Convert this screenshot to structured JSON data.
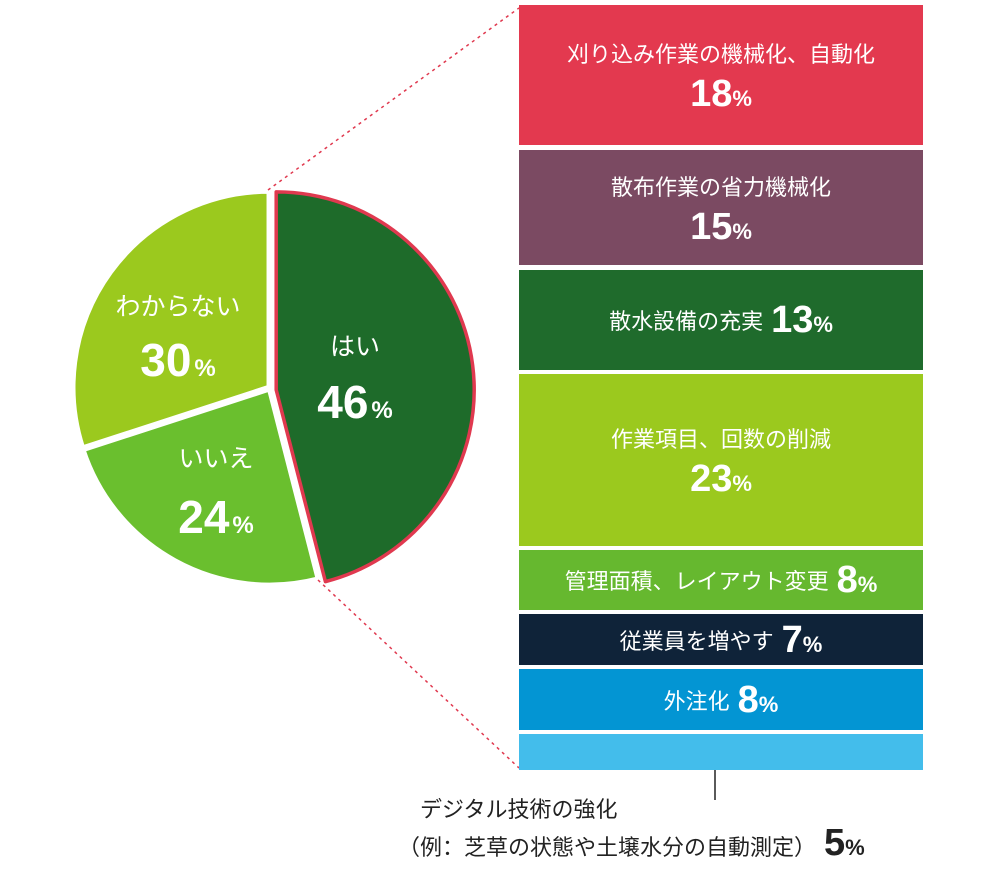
{
  "colors": {
    "yes": "#1e6b2a",
    "no": "#6abf2e",
    "unknown": "#9bc91e",
    "highlight": "#e0394f",
    "connector": "#e0394f",
    "bars": [
      "#e3394f",
      "#7b4a62",
      "#1f6b2c",
      "#9bc91e",
      "#66b82f",
      "#0f2339",
      "#0395d3",
      "#43bdeb"
    ]
  },
  "chart_data": [
    {
      "type": "pie",
      "categories": [
        "はい",
        "いいえ",
        "わからない"
      ],
      "values": [
        46,
        24,
        30
      ],
      "unit": "%"
    },
    {
      "type": "bar",
      "orientation": "stacked-vertical",
      "categories": [
        "刈り込み作業の機械化、自動化",
        "散布作業の省力機械化",
        "散水設備の充実",
        "作業項目、回数の削減",
        "管理面積、レイアウト変更",
        "従業員を増やす",
        "外注化",
        "デジタル技術の強化（例：芝草の状態や土壌水分の自動測定）"
      ],
      "values": [
        18,
        15,
        13,
        23,
        8,
        7,
        8,
        5
      ],
      "unit": "%"
    }
  ],
  "pie_labels": {
    "yes": {
      "label": "はい",
      "value": "46",
      "pct": "%"
    },
    "no": {
      "label": "いいえ",
      "value": "24",
      "pct": "%"
    },
    "unknown": {
      "label": "わからない",
      "value": "30",
      "pct": "%"
    }
  },
  "bars": [
    {
      "label": "刈り込み作業の機械化、自動化",
      "value": "18",
      "pct": "%"
    },
    {
      "label": "散布作業の省力機械化",
      "value": "15",
      "pct": "%"
    },
    {
      "label": "散水設備の充実",
      "value": "13",
      "pct": "%"
    },
    {
      "label": "作業項目、回数の削減",
      "value": "23",
      "pct": "%"
    },
    {
      "label": "管理面積、レイアウト変更",
      "value": "8",
      "pct": "%"
    },
    {
      "label": "従業員を増やす",
      "value": "7",
      "pct": "%"
    },
    {
      "label": "外注化",
      "value": "8",
      "pct": "%"
    }
  ],
  "note": {
    "line1": "デジタル技術の強化",
    "line2": "（例：芝草の状態や土壌水分の自動測定）",
    "value": "5",
    "pct": "%"
  }
}
